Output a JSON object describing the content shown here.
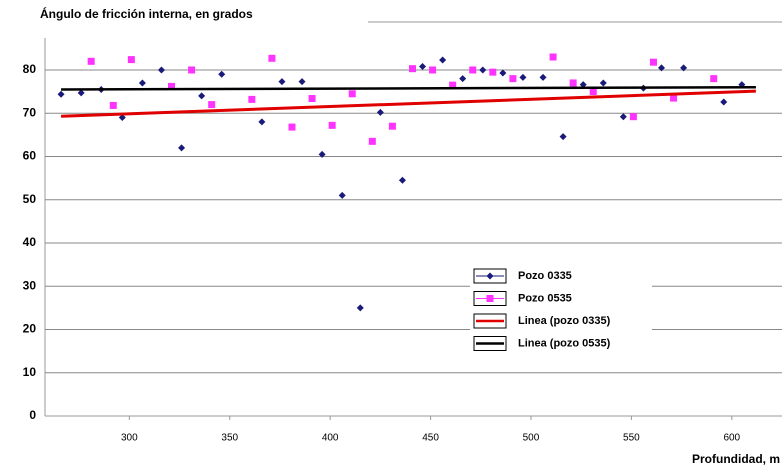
{
  "chart_data": {
    "type": "scatter",
    "title": "Ángulo de fricción interna, en grados",
    "x_label": "Profundidad, m",
    "xlim": [
      258,
      625
    ],
    "xticks": [
      300,
      350,
      400,
      450,
      500,
      550,
      600
    ],
    "ylim": [
      0,
      87
    ],
    "yticks": [
      0,
      10,
      20,
      30,
      40,
      50,
      60,
      70,
      80
    ],
    "grid": true,
    "series": [
      {
        "name": "Pozo 0335",
        "color": "#1a1a7a",
        "marker": "diamond",
        "x": [
          266,
          276,
          286,
          296.5,
          306.5,
          316,
          326,
          336,
          346,
          366,
          376,
          386,
          396,
          406,
          415,
          425,
          436,
          446,
          456,
          466,
          476,
          486,
          496,
          506,
          516,
          526,
          536,
          546,
          556,
          565,
          576,
          596,
          605
        ],
        "values": [
          74.4,
          74.7,
          75.5,
          69,
          77,
          80,
          62,
          74,
          79,
          68,
          77.3,
          77.3,
          60.5,
          51,
          25,
          70.2,
          54.5,
          80.8,
          82.3,
          78,
          80,
          79.3,
          78.3,
          78.3,
          64.6,
          76.6,
          77,
          69.2,
          75.8,
          80.5,
          80.5,
          72.6,
          76.6
        ]
      },
      {
        "name": "Pozo 0535",
        "color": "#ff33ff",
        "marker": "square",
        "x": [
          281,
          292,
          301,
          321,
          331,
          341,
          361,
          371,
          381,
          391,
          401,
          411,
          421,
          431,
          441,
          451,
          461,
          471,
          481,
          491,
          511,
          521,
          531,
          551,
          561,
          571,
          591
        ],
        "values": [
          82,
          71.8,
          82.4,
          76.2,
          80,
          72,
          73.2,
          82.7,
          66.8,
          73.4,
          67.2,
          74.5,
          63.5,
          67,
          80.3,
          80,
          76.5,
          80,
          79.5,
          78,
          83,
          77,
          75,
          69.2,
          81.8,
          73.5,
          78
        ]
      },
      {
        "name": "Linea (pozo 0335)",
        "color": "#e00000",
        "marker": "line",
        "x": [
          266,
          612
        ],
        "values": [
          69.3,
          75.1
        ]
      },
      {
        "name": "Linea (pozo 0535)",
        "color": "#000000",
        "marker": "line",
        "x": [
          266,
          612
        ],
        "values": [
          75.5,
          76
        ]
      }
    ]
  }
}
